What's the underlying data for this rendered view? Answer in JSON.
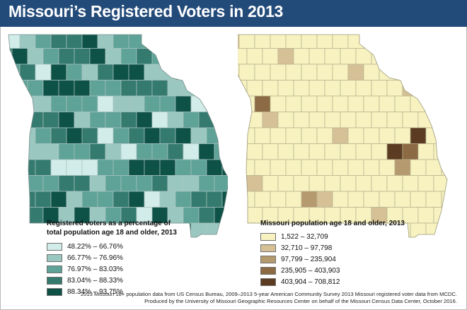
{
  "header": {
    "title": "Missouri’s Registered Voters in 2013"
  },
  "colors": {
    "header_bg": "#234b79",
    "voter_scale": [
      "#d2ede9",
      "#9ac8c1",
      "#5fa297",
      "#357a6f",
      "#0e5147"
    ],
    "pop_scale": [
      "#f7f2c0",
      "#d6c197",
      "#b69a6f",
      "#8b6a44",
      "#5b3c22"
    ]
  },
  "legend_voters": {
    "title_line1": "Registered voters as a percentage of",
    "title_line2": "total population age 18 and older, 2013",
    "items": [
      "48.22% – 66.76%",
      "66.77% – 76.96%",
      "76.97% – 83.03%",
      "83.04% – 88.33%",
      "88.34% – 93.75%"
    ]
  },
  "legend_pop": {
    "title": "Missouri population age 18 and older, 2013",
    "items": [
      "1,522 – 32,709",
      "32,710 – 97,798",
      "97,799 – 235,904",
      "235,905 – 403,903",
      "403,904 – 708,812"
    ]
  },
  "footer": {
    "line1": "2013 Missouri 18+ population data from US Census Bureau, 2009–2013 5-year American Community Survey 2013 Missouri registered voter data from MCDC.",
    "line2": "Produced by the University of Missouri Geographic Resources Center on behalf of the Missouri Census Data Center, October 2016."
  }
}
